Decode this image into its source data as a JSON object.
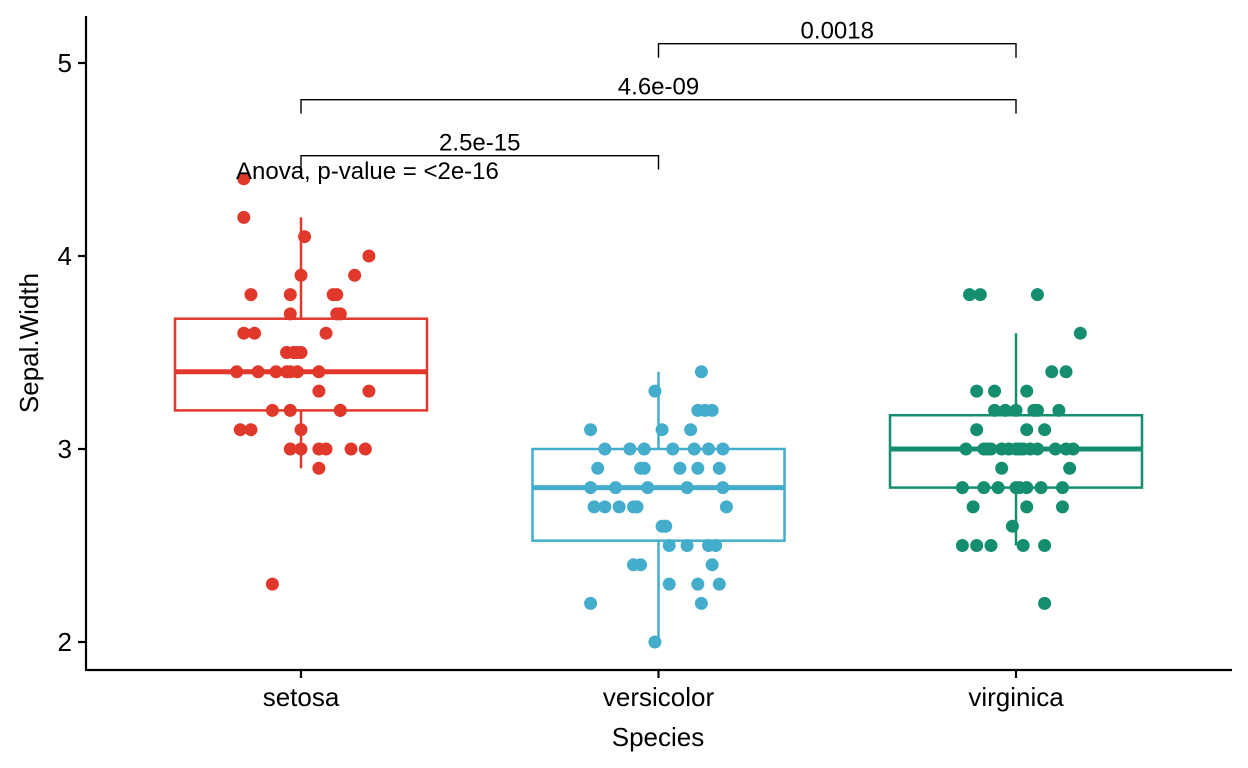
{
  "chart_data": {
    "type": "box",
    "title": "",
    "xlabel": "Species",
    "ylabel": "Sepal.Width",
    "ylim": [
      1.84,
      5.25
    ],
    "yticks": [
      2,
      3,
      4,
      5
    ],
    "grid": false,
    "categories": [
      "setosa",
      "versicolor",
      "virginica"
    ],
    "colors": {
      "setosa": "#E0382B",
      "versicolor": "#44ADCC",
      "virginica": "#148E6F"
    },
    "boxes": [
      {
        "category": "setosa",
        "whisker_low": 2.9,
        "q1": 3.2,
        "median": 3.4,
        "q3": 3.675,
        "whisker_high": 4.2
      },
      {
        "category": "versicolor",
        "whisker_low": 2.0,
        "q1": 2.525,
        "median": 2.8,
        "q3": 3.0,
        "whisker_high": 3.4
      },
      {
        "category": "virginica",
        "whisker_low": 2.5,
        "q1": 2.8,
        "median": 3.0,
        "q3": 3.175,
        "whisker_high": 3.6
      }
    ],
    "points": {
      "setosa": [
        {
          "dx": -0.16,
          "y": 4.4
        },
        {
          "dx": -0.16,
          "y": 4.2
        },
        {
          "dx": 0.01,
          "y": 4.1
        },
        {
          "dx": 0.19,
          "y": 4.0
        },
        {
          "dx": 0.15,
          "y": 3.9
        },
        {
          "dx": 0.0,
          "y": 3.9
        },
        {
          "dx": 0.1,
          "y": 3.8
        },
        {
          "dx": 0.09,
          "y": 3.8
        },
        {
          "dx": -0.14,
          "y": 3.8
        },
        {
          "dx": -0.03,
          "y": 3.8
        },
        {
          "dx": 0.11,
          "y": 3.7
        },
        {
          "dx": 0.1,
          "y": 3.7
        },
        {
          "dx": -0.03,
          "y": 3.7
        },
        {
          "dx": -0.16,
          "y": 3.6
        },
        {
          "dx": 0.07,
          "y": 3.6
        },
        {
          "dx": -0.13,
          "y": 3.6
        },
        {
          "dx": -0.04,
          "y": 3.5
        },
        {
          "dx": -0.04,
          "y": 3.5
        },
        {
          "dx": -0.02,
          "y": 3.5
        },
        {
          "dx": -0.02,
          "y": 3.5
        },
        {
          "dx": 0.0,
          "y": 3.5
        },
        {
          "dx": -0.01,
          "y": 3.5
        },
        {
          "dx": -0.18,
          "y": 3.4
        },
        {
          "dx": -0.12,
          "y": 3.4
        },
        {
          "dx": -0.07,
          "y": 3.4
        },
        {
          "dx": -0.04,
          "y": 3.4
        },
        {
          "dx": -0.03,
          "y": 3.4
        },
        {
          "dx": -0.01,
          "y": 3.4
        },
        {
          "dx": 0.05,
          "y": 3.4
        },
        {
          "dx": 0.19,
          "y": 3.3
        },
        {
          "dx": 0.05,
          "y": 3.3
        },
        {
          "dx": -0.08,
          "y": 3.2
        },
        {
          "dx": -0.03,
          "y": 3.2
        },
        {
          "dx": 0.11,
          "y": 3.2
        },
        {
          "dx": 0.11,
          "y": 3.2
        },
        {
          "dx": -0.17,
          "y": 3.1
        },
        {
          "dx": -0.14,
          "y": 3.1
        },
        {
          "dx": 0.0,
          "y": 3.1
        },
        {
          "dx": -0.03,
          "y": 3.0
        },
        {
          "dx": 0.05,
          "y": 3.0
        },
        {
          "dx": 0.07,
          "y": 3.0
        },
        {
          "dx": 0.14,
          "y": 3.0
        },
        {
          "dx": 0.18,
          "y": 3.0
        },
        {
          "dx": 0.0,
          "y": 3.0
        },
        {
          "dx": 0.05,
          "y": 2.9
        },
        {
          "dx": -0.08,
          "y": 2.3
        }
      ],
      "versicolor": [
        {
          "dx": 0.12,
          "y": 3.4
        },
        {
          "dx": -0.01,
          "y": 3.3
        },
        {
          "dx": 0.13,
          "y": 3.2
        },
        {
          "dx": 0.11,
          "y": 3.2
        },
        {
          "dx": 0.15,
          "y": 3.2
        },
        {
          "dx": 0.01,
          "y": 3.1
        },
        {
          "dx": 0.09,
          "y": 3.1
        },
        {
          "dx": -0.19,
          "y": 3.1
        },
        {
          "dx": 0.04,
          "y": 3.0
        },
        {
          "dx": -0.15,
          "y": 3.0
        },
        {
          "dx": -0.08,
          "y": 3.0
        },
        {
          "dx": -0.04,
          "y": 3.0
        },
        {
          "dx": 0.14,
          "y": 3.0
        },
        {
          "dx": 0.1,
          "y": 3.0
        },
        {
          "dx": 0.18,
          "y": 3.0
        },
        {
          "dx": -0.17,
          "y": 2.9
        },
        {
          "dx": -0.04,
          "y": 2.9
        },
        {
          "dx": -0.05,
          "y": 2.9
        },
        {
          "dx": 0.06,
          "y": 2.9
        },
        {
          "dx": 0.11,
          "y": 2.9
        },
        {
          "dx": 0.17,
          "y": 2.9
        },
        {
          "dx": -0.19,
          "y": 2.8
        },
        {
          "dx": -0.03,
          "y": 2.8
        },
        {
          "dx": 0.08,
          "y": 2.8
        },
        {
          "dx": 0.18,
          "y": 2.8
        },
        {
          "dx": -0.12,
          "y": 2.8
        },
        {
          "dx": -0.11,
          "y": 2.7
        },
        {
          "dx": -0.15,
          "y": 2.7
        },
        {
          "dx": -0.06,
          "y": 2.7
        },
        {
          "dx": -0.07,
          "y": 2.7
        },
        {
          "dx": -0.18,
          "y": 2.7
        },
        {
          "dx": 0.19,
          "y": 2.7
        },
        {
          "dx": 0.02,
          "y": 2.6
        },
        {
          "dx": 0.01,
          "y": 2.6
        },
        {
          "dx": 0.02,
          "y": 2.6
        },
        {
          "dx": 0.03,
          "y": 2.5
        },
        {
          "dx": 0.08,
          "y": 2.5
        },
        {
          "dx": 0.16,
          "y": 2.5
        },
        {
          "dx": 0.14,
          "y": 2.5
        },
        {
          "dx": 0.15,
          "y": 2.4
        },
        {
          "dx": -0.07,
          "y": 2.4
        },
        {
          "dx": -0.05,
          "y": 2.4
        },
        {
          "dx": 0.03,
          "y": 2.3
        },
        {
          "dx": 0.11,
          "y": 2.3
        },
        {
          "dx": 0.17,
          "y": 2.3
        },
        {
          "dx": -0.19,
          "y": 2.2
        },
        {
          "dx": 0.12,
          "y": 2.2
        },
        {
          "dx": -0.01,
          "y": 2.0
        }
      ],
      "virginica": [
        {
          "dx": 0.06,
          "y": 3.8
        },
        {
          "dx": -0.1,
          "y": 3.8
        },
        {
          "dx": -0.13,
          "y": 3.8
        },
        {
          "dx": 0.18,
          "y": 3.6
        },
        {
          "dx": 0.14,
          "y": 3.4
        },
        {
          "dx": 0.1,
          "y": 3.4
        },
        {
          "dx": -0.11,
          "y": 3.3
        },
        {
          "dx": 0.03,
          "y": 3.3
        },
        {
          "dx": -0.06,
          "y": 3.3
        },
        {
          "dx": -0.03,
          "y": 3.2
        },
        {
          "dx": 0.0,
          "y": 3.2
        },
        {
          "dx": 0.05,
          "y": 3.2
        },
        {
          "dx": 0.06,
          "y": 3.2
        },
        {
          "dx": 0.12,
          "y": 3.2
        },
        {
          "dx": -0.06,
          "y": 3.2
        },
        {
          "dx": -0.11,
          "y": 3.1
        },
        {
          "dx": 0.08,
          "y": 3.1
        },
        {
          "dx": 0.03,
          "y": 3.1
        },
        {
          "dx": 0.04,
          "y": 3.0
        },
        {
          "dx": 0.0,
          "y": 3.0
        },
        {
          "dx": -0.09,
          "y": 3.0
        },
        {
          "dx": -0.08,
          "y": 3.0
        },
        {
          "dx": -0.07,
          "y": 3.0
        },
        {
          "dx": -0.04,
          "y": 3.0
        },
        {
          "dx": 0.01,
          "y": 3.0
        },
        {
          "dx": 0.06,
          "y": 3.0
        },
        {
          "dx": 0.14,
          "y": 3.0
        },
        {
          "dx": 0.16,
          "y": 3.0
        },
        {
          "dx": -0.14,
          "y": 3.0
        },
        {
          "dx": -0.02,
          "y": 3.0
        },
        {
          "dx": 0.02,
          "y": 3.0
        },
        {
          "dx": 0.11,
          "y": 3.0
        },
        {
          "dx": -0.04,
          "y": 2.9
        },
        {
          "dx": 0.15,
          "y": 2.9
        },
        {
          "dx": -0.09,
          "y": 2.8
        },
        {
          "dx": 0.13,
          "y": 2.8
        },
        {
          "dx": 0.01,
          "y": 2.8
        },
        {
          "dx": 0.03,
          "y": 2.8
        },
        {
          "dx": 0.07,
          "y": 2.8
        },
        {
          "dx": 0.0,
          "y": 2.8
        },
        {
          "dx": -0.15,
          "y": 2.8
        },
        {
          "dx": -0.05,
          "y": 2.8
        },
        {
          "dx": -0.12,
          "y": 2.7
        },
        {
          "dx": 0.03,
          "y": 2.7
        },
        {
          "dx": 0.13,
          "y": 2.7
        },
        {
          "dx": -0.01,
          "y": 2.6
        },
        {
          "dx": -0.07,
          "y": 2.5
        },
        {
          "dx": -0.15,
          "y": 2.5
        },
        {
          "dx": 0.02,
          "y": 2.5
        },
        {
          "dx": -0.11,
          "y": 2.5
        },
        {
          "dx": 0.08,
          "y": 2.5
        },
        {
          "dx": 0.08,
          "y": 2.2
        }
      ]
    },
    "comparisons": [
      {
        "from": "setosa",
        "to": "versicolor",
        "label": "2.5e-15",
        "y": 4.52
      },
      {
        "from": "setosa",
        "to": "virginica",
        "label": "4.6e-09",
        "y": 4.81
      },
      {
        "from": "versicolor",
        "to": "virginica",
        "label": "0.0018",
        "y": 5.1
      }
    ],
    "annotation": {
      "text": "Anova, p-value = <2e-16",
      "x_category": "setosa",
      "y": 4.42
    }
  }
}
